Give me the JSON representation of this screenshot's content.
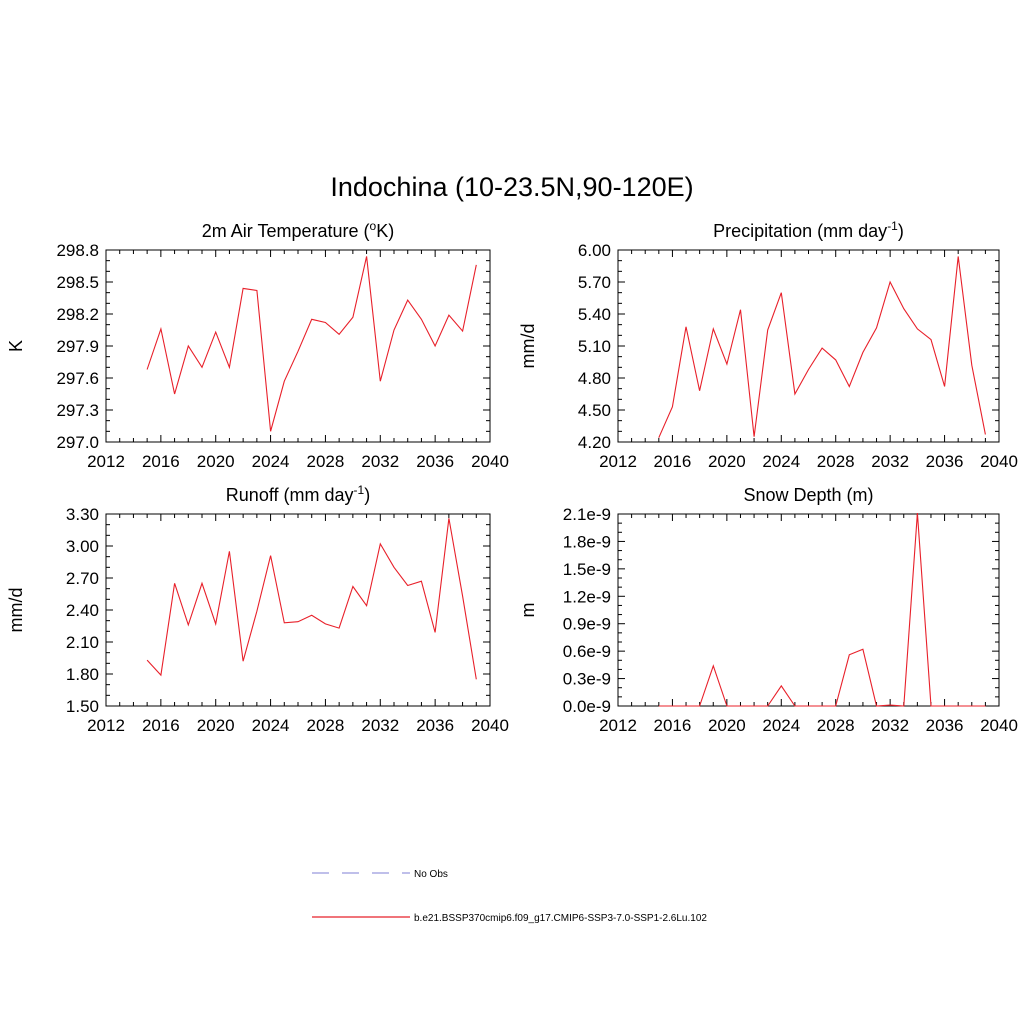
{
  "title": "Indochina (10-23.5N,90-120E)",
  "legend": {
    "items": [
      {
        "label": "No Obs",
        "style": "dashed",
        "color": "#9999dd"
      },
      {
        "label": "b.e21.BSSP370cmip6.f09_g17.CMIP6-SSP3-7.0-SSP1-2.6Lu.102",
        "style": "solid",
        "color": "#e8202a"
      }
    ]
  },
  "chart_data": [
    {
      "type": "line",
      "title": "2m Air Temperature (",
      "title_sup": "o",
      "title_end": "K)",
      "ylabel": "K",
      "xlim": [
        2012,
        2040
      ],
      "ylim": [
        297.0,
        298.8
      ],
      "xticks": [
        "2012",
        "2016",
        "2020",
        "2024",
        "2028",
        "2032",
        "2036",
        "2040"
      ],
      "yticks": [
        "297.0",
        "297.3",
        "297.6",
        "297.9",
        "298.2",
        "298.5",
        "298.8"
      ],
      "x": [
        2015,
        2016,
        2017,
        2018,
        2019,
        2020,
        2021,
        2022,
        2023,
        2024,
        2025,
        2026,
        2027,
        2028,
        2029,
        2030,
        2031,
        2032,
        2033,
        2034,
        2035,
        2036,
        2037,
        2038,
        2039
      ],
      "series": [
        {
          "color": "#e8202a",
          "values": [
            297.68,
            298.06,
            297.45,
            297.9,
            297.7,
            298.03,
            297.7,
            298.44,
            298.42,
            297.1,
            297.57,
            297.85,
            298.15,
            298.12,
            298.01,
            298.17,
            298.74,
            297.57,
            298.05,
            298.33,
            298.15,
            297.9,
            298.19,
            298.04,
            298.66
          ]
        }
      ]
    },
    {
      "type": "line",
      "title": "Precipitation (mm day",
      "title_sup": "-1",
      "title_end": ")",
      "ylabel": "mm/d",
      "xlim": [
        2012,
        2040
      ],
      "ylim": [
        4.2,
        6.0
      ],
      "xticks": [
        "2012",
        "2016",
        "2020",
        "2024",
        "2028",
        "2032",
        "2036",
        "2040"
      ],
      "yticks": [
        "4.20",
        "4.50",
        "4.80",
        "5.10",
        "5.40",
        "5.70",
        "6.00"
      ],
      "x": [
        2015,
        2016,
        2017,
        2018,
        2019,
        2020,
        2021,
        2022,
        2023,
        2024,
        2025,
        2026,
        2027,
        2028,
        2029,
        2030,
        2031,
        2032,
        2033,
        2034,
        2035,
        2036,
        2037,
        2038,
        2039
      ],
      "series": [
        {
          "color": "#e8202a",
          "values": [
            4.24,
            4.53,
            5.28,
            4.68,
            5.26,
            4.93,
            5.44,
            4.25,
            5.25,
            5.6,
            4.65,
            4.88,
            5.08,
            4.97,
            4.72,
            5.04,
            5.27,
            5.7,
            5.45,
            5.26,
            5.16,
            4.72,
            5.94,
            4.92,
            4.27
          ]
        }
      ]
    },
    {
      "type": "line",
      "title": "Runoff (mm day",
      "title_sup": "-1",
      "title_end": ")",
      "ylabel": "mm/d",
      "xlim": [
        2012,
        2040
      ],
      "ylim": [
        1.5,
        3.3
      ],
      "xticks": [
        "2012",
        "2016",
        "2020",
        "2024",
        "2028",
        "2032",
        "2036",
        "2040"
      ],
      "yticks": [
        "1.50",
        "1.80",
        "2.10",
        "2.40",
        "2.70",
        "3.00",
        "3.30"
      ],
      "x": [
        2015,
        2016,
        2017,
        2018,
        2019,
        2020,
        2021,
        2022,
        2023,
        2024,
        2025,
        2026,
        2027,
        2028,
        2029,
        2030,
        2031,
        2032,
        2033,
        2034,
        2035,
        2036,
        2037,
        2038,
        2039
      ],
      "series": [
        {
          "color": "#e8202a",
          "values": [
            1.93,
            1.79,
            2.65,
            2.26,
            2.65,
            2.27,
            2.95,
            1.92,
            2.39,
            2.91,
            2.28,
            2.29,
            2.35,
            2.27,
            2.23,
            2.62,
            2.44,
            3.02,
            2.8,
            2.63,
            2.67,
            2.19,
            3.26,
            2.53,
            1.75
          ]
        }
      ]
    },
    {
      "type": "line",
      "title": "Snow Depth (m)",
      "ylabel": "m",
      "xlim": [
        2012,
        2040
      ],
      "ylim": [
        0.0,
        2.1
      ],
      "ytick_values": [
        0.0,
        0.3,
        0.6,
        0.9,
        1.2,
        1.5,
        1.8,
        2.1
      ],
      "xticks": [
        "2012",
        "2016",
        "2020",
        "2024",
        "2028",
        "2032",
        "2036",
        "2040"
      ],
      "yticks": [
        "0.0e-9",
        "0.3e-9",
        "0.6e-9",
        "0.9e-9",
        "1.2e-9",
        "1.5e-9",
        "1.8e-9",
        "2.1e-9"
      ],
      "x": [
        2015,
        2016,
        2017,
        2018,
        2019,
        2020,
        2021,
        2022,
        2023,
        2024,
        2025,
        2026,
        2027,
        2028,
        2029,
        2030,
        2031,
        2032,
        2033,
        2034,
        2035,
        2036,
        2037,
        2038,
        2039
      ],
      "series": [
        {
          "color": "#e8202a",
          "values": [
            0.0,
            0.0,
            0.0,
            0.0,
            0.44,
            0.0,
            0.0,
            0.0,
            0.0,
            0.22,
            0.0,
            0.0,
            0.0,
            0.0,
            0.56,
            0.62,
            0.0,
            0.01,
            0.0,
            2.11,
            0.0,
            0.0,
            0.0,
            0.0,
            0.0
          ]
        }
      ]
    }
  ]
}
